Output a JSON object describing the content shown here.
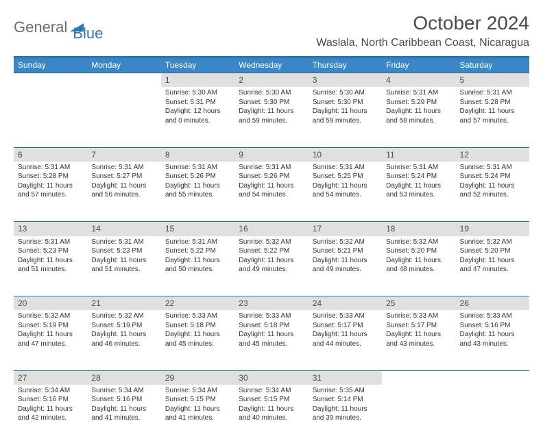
{
  "brand": {
    "general": "General",
    "blue": "Blue"
  },
  "colors": {
    "header_bg": "#3a87c7",
    "header_border": "#2a6a9a",
    "daynum_bg": "#e0e0e0",
    "text": "#333333",
    "brand_gray": "#6a6a6a",
    "brand_blue": "#2a7ab8"
  },
  "title": "October 2024",
  "location": "Waslala, North Caribbean Coast, Nicaragua",
  "weekdays": [
    "Sunday",
    "Monday",
    "Tuesday",
    "Wednesday",
    "Thursday",
    "Friday",
    "Saturday"
  ],
  "weeks": [
    [
      null,
      null,
      {
        "n": "1",
        "sr": "Sunrise: 5:30 AM",
        "ss": "Sunset: 5:31 PM",
        "dl": "Daylight: 12 hours and 0 minutes."
      },
      {
        "n": "2",
        "sr": "Sunrise: 5:30 AM",
        "ss": "Sunset: 5:30 PM",
        "dl": "Daylight: 11 hours and 59 minutes."
      },
      {
        "n": "3",
        "sr": "Sunrise: 5:30 AM",
        "ss": "Sunset: 5:30 PM",
        "dl": "Daylight: 11 hours and 59 minutes."
      },
      {
        "n": "4",
        "sr": "Sunrise: 5:31 AM",
        "ss": "Sunset: 5:29 PM",
        "dl": "Daylight: 11 hours and 58 minutes."
      },
      {
        "n": "5",
        "sr": "Sunrise: 5:31 AM",
        "ss": "Sunset: 5:28 PM",
        "dl": "Daylight: 11 hours and 57 minutes."
      }
    ],
    [
      {
        "n": "6",
        "sr": "Sunrise: 5:31 AM",
        "ss": "Sunset: 5:28 PM",
        "dl": "Daylight: 11 hours and 57 minutes."
      },
      {
        "n": "7",
        "sr": "Sunrise: 5:31 AM",
        "ss": "Sunset: 5:27 PM",
        "dl": "Daylight: 11 hours and 56 minutes."
      },
      {
        "n": "8",
        "sr": "Sunrise: 5:31 AM",
        "ss": "Sunset: 5:26 PM",
        "dl": "Daylight: 11 hours and 55 minutes."
      },
      {
        "n": "9",
        "sr": "Sunrise: 5:31 AM",
        "ss": "Sunset: 5:26 PM",
        "dl": "Daylight: 11 hours and 54 minutes."
      },
      {
        "n": "10",
        "sr": "Sunrise: 5:31 AM",
        "ss": "Sunset: 5:25 PM",
        "dl": "Daylight: 11 hours and 54 minutes."
      },
      {
        "n": "11",
        "sr": "Sunrise: 5:31 AM",
        "ss": "Sunset: 5:24 PM",
        "dl": "Daylight: 11 hours and 53 minutes."
      },
      {
        "n": "12",
        "sr": "Sunrise: 5:31 AM",
        "ss": "Sunset: 5:24 PM",
        "dl": "Daylight: 11 hours and 52 minutes."
      }
    ],
    [
      {
        "n": "13",
        "sr": "Sunrise: 5:31 AM",
        "ss": "Sunset: 5:23 PM",
        "dl": "Daylight: 11 hours and 51 minutes."
      },
      {
        "n": "14",
        "sr": "Sunrise: 5:31 AM",
        "ss": "Sunset: 5:23 PM",
        "dl": "Daylight: 11 hours and 51 minutes."
      },
      {
        "n": "15",
        "sr": "Sunrise: 5:31 AM",
        "ss": "Sunset: 5:22 PM",
        "dl": "Daylight: 11 hours and 50 minutes."
      },
      {
        "n": "16",
        "sr": "Sunrise: 5:32 AM",
        "ss": "Sunset: 5:22 PM",
        "dl": "Daylight: 11 hours and 49 minutes."
      },
      {
        "n": "17",
        "sr": "Sunrise: 5:32 AM",
        "ss": "Sunset: 5:21 PM",
        "dl": "Daylight: 11 hours and 49 minutes."
      },
      {
        "n": "18",
        "sr": "Sunrise: 5:32 AM",
        "ss": "Sunset: 5:20 PM",
        "dl": "Daylight: 11 hours and 48 minutes."
      },
      {
        "n": "19",
        "sr": "Sunrise: 5:32 AM",
        "ss": "Sunset: 5:20 PM",
        "dl": "Daylight: 11 hours and 47 minutes."
      }
    ],
    [
      {
        "n": "20",
        "sr": "Sunrise: 5:32 AM",
        "ss": "Sunset: 5:19 PM",
        "dl": "Daylight: 11 hours and 47 minutes."
      },
      {
        "n": "21",
        "sr": "Sunrise: 5:32 AM",
        "ss": "Sunset: 5:19 PM",
        "dl": "Daylight: 11 hours and 46 minutes."
      },
      {
        "n": "22",
        "sr": "Sunrise: 5:33 AM",
        "ss": "Sunset: 5:18 PM",
        "dl": "Daylight: 11 hours and 45 minutes."
      },
      {
        "n": "23",
        "sr": "Sunrise: 5:33 AM",
        "ss": "Sunset: 5:18 PM",
        "dl": "Daylight: 11 hours and 45 minutes."
      },
      {
        "n": "24",
        "sr": "Sunrise: 5:33 AM",
        "ss": "Sunset: 5:17 PM",
        "dl": "Daylight: 11 hours and 44 minutes."
      },
      {
        "n": "25",
        "sr": "Sunrise: 5:33 AM",
        "ss": "Sunset: 5:17 PM",
        "dl": "Daylight: 11 hours and 43 minutes."
      },
      {
        "n": "26",
        "sr": "Sunrise: 5:33 AM",
        "ss": "Sunset: 5:16 PM",
        "dl": "Daylight: 11 hours and 43 minutes."
      }
    ],
    [
      {
        "n": "27",
        "sr": "Sunrise: 5:34 AM",
        "ss": "Sunset: 5:16 PM",
        "dl": "Daylight: 11 hours and 42 minutes."
      },
      {
        "n": "28",
        "sr": "Sunrise: 5:34 AM",
        "ss": "Sunset: 5:16 PM",
        "dl": "Daylight: 11 hours and 41 minutes."
      },
      {
        "n": "29",
        "sr": "Sunrise: 5:34 AM",
        "ss": "Sunset: 5:15 PM",
        "dl": "Daylight: 11 hours and 41 minutes."
      },
      {
        "n": "30",
        "sr": "Sunrise: 5:34 AM",
        "ss": "Sunset: 5:15 PM",
        "dl": "Daylight: 11 hours and 40 minutes."
      },
      {
        "n": "31",
        "sr": "Sunrise: 5:35 AM",
        "ss": "Sunset: 5:14 PM",
        "dl": "Daylight: 11 hours and 39 minutes."
      },
      null,
      null
    ]
  ]
}
